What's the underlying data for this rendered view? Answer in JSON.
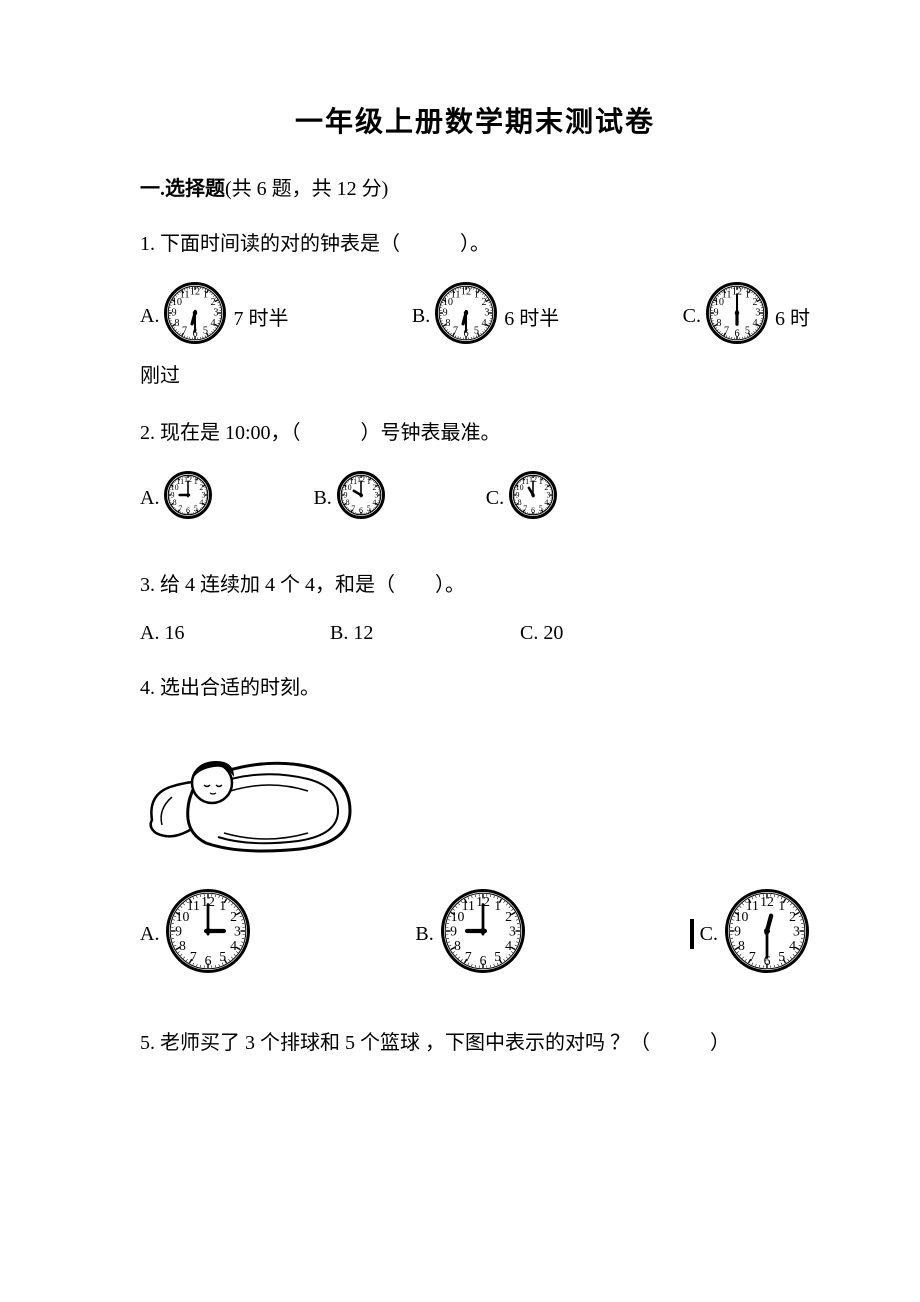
{
  "title": "一年级上册数学期末测试卷",
  "section": {
    "label": "一.选择题",
    "info": "(共 6 题，共 12 分)"
  },
  "q1": {
    "text": "1. 下面时间读的对的钟表是（　　　）。",
    "optA": {
      "letter": "A.",
      "after": "7 时半",
      "clock": {
        "size": 64,
        "hour": 6,
        "minute": 30
      }
    },
    "optB": {
      "letter": "B.",
      "after": "6 时半",
      "clock": {
        "size": 64,
        "hour": 6,
        "minute": 30
      }
    },
    "optC": {
      "letter": "C.",
      "after": "6 时",
      "clock": {
        "size": 64,
        "hour": 6,
        "minute": 0
      }
    },
    "wrap": "刚过"
  },
  "q2": {
    "text": "2. 现在是 10:00，（　　　）号钟表最准。",
    "optA": {
      "letter": "A.",
      "clock": {
        "size": 50,
        "hour": 9,
        "minute": 0
      }
    },
    "optB": {
      "letter": "B.",
      "clock": {
        "size": 50,
        "hour": 10,
        "minute": 0
      }
    },
    "optC": {
      "letter": "C.",
      "clock": {
        "size": 50,
        "hour": 11,
        "minute": 0
      }
    }
  },
  "q3": {
    "text": "3. 给 4 连续加 4 个 4，和是（　　）。",
    "optA": "A. 16",
    "optB": "B. 12",
    "optC": "C. 20"
  },
  "q4": {
    "text": "4. 选出合适的时刻。",
    "optA": {
      "letter": "A.",
      "clock": {
        "size": 86,
        "hour": 3,
        "minute": 0
      }
    },
    "optB": {
      "letter": "B.",
      "clock": {
        "size": 86,
        "hour": 9,
        "minute": 0
      }
    },
    "optC": {
      "letter": "C.",
      "clock": {
        "size": 86,
        "hour": 12,
        "minute": 30
      }
    }
  },
  "q5": {
    "text": "5. 老师买了 3 个排球和 5 个篮球 ，下图中表示的对吗 ？（　　　）"
  },
  "clockStyle": {
    "faceFill": "#ffffff",
    "rimStroke": "#000000",
    "rimWidth": 3,
    "tickColor": "#000000",
    "numColor": "#000000",
    "handColor": "#000000",
    "hourHandRatio": 0.42,
    "minuteHandRatio": 0.7,
    "numFontRatio": 0.16
  }
}
